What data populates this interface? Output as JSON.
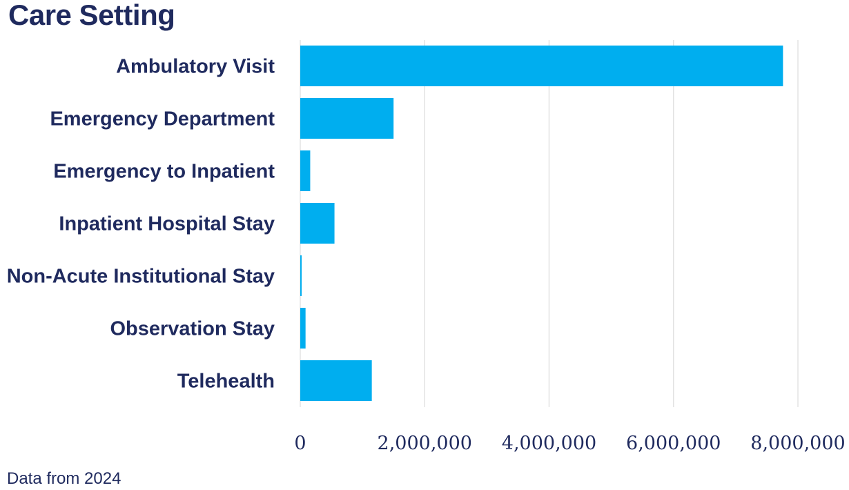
{
  "chart_data": {
    "type": "bar",
    "orientation": "horizontal",
    "title": "Care Setting",
    "xlabel": "",
    "ylabel": "",
    "categories": [
      "Ambulatory Visit",
      "Emergency Department",
      "Emergency to Inpatient",
      "Inpatient Hospital Stay",
      "Non-Acute Institutional Stay",
      "Observation Stay",
      "Telehealth"
    ],
    "values": [
      7760000,
      1500000,
      160000,
      550000,
      15000,
      85000,
      1150000
    ],
    "xlim": [
      0,
      8000000
    ],
    "xticks": [
      0,
      2000000,
      4000000,
      6000000,
      8000000
    ],
    "xtick_labels": [
      "0",
      "2,000,000",
      "4,000,000",
      "6,000,000",
      "8,000,000"
    ],
    "grid": "vertical",
    "legend": "none",
    "bar_color": "#00aeef"
  },
  "footnote": "Data from 2024",
  "colors": {
    "text": "#1f2a5e",
    "bar": "#00aeef",
    "grid": "#e3e3e3"
  }
}
